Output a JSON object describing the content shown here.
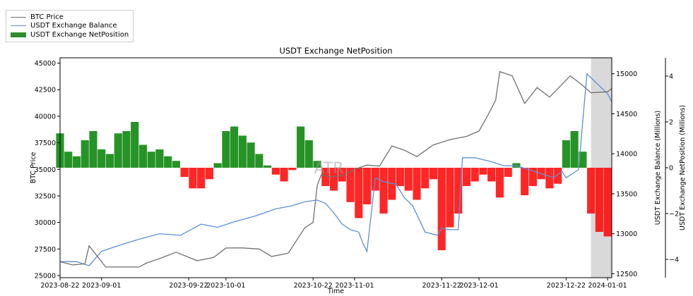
{
  "chart_data": {
    "type": "line",
    "title": "USDT Exchange NetPosition",
    "xlabel": "Time",
    "ylabel_left": "BTC Price",
    "ylabel_right1": "USDT Exchange Balance (Millions)",
    "ylabel_right2": "USDT Exchange NetPosition (Millions)",
    "watermark": "ATR",
    "x_tick_labels": [
      "2023-08-22",
      "2023-09-01",
      "2023-09-22",
      "2023-10-01",
      "2023-10-22",
      "2023-11-01",
      "2023-11-22",
      "2023-12-01",
      "2023-12-22",
      "2024-01-01"
    ],
    "x_range": [
      "2023-08-22",
      "2024-01-02"
    ],
    "shaded_region": [
      "2023-12-28",
      "2024-01-02"
    ],
    "btc_price": {
      "name": "BTC Price",
      "ylim": [
        24800,
        45500
      ],
      "ticks": [
        "25000",
        "27500",
        "30000",
        "32500",
        "35000",
        "37500",
        "40000",
        "42500",
        "45000"
      ],
      "x": [
        "2023-08-22",
        "2023-08-25",
        "2023-08-28",
        "2023-08-29",
        "2023-08-30",
        "2023-09-02",
        "2023-09-06",
        "2023-09-10",
        "2023-09-12",
        "2023-09-15",
        "2023-09-19",
        "2023-09-24",
        "2023-09-28",
        "2023-10-01",
        "2023-10-05",
        "2023-10-09",
        "2023-10-12",
        "2023-10-16",
        "2023-10-18",
        "2023-10-20",
        "2023-10-22",
        "2023-10-23",
        "2023-10-24",
        "2023-10-26",
        "2023-10-29",
        "2023-11-01",
        "2023-11-04",
        "2023-11-07",
        "2023-11-10",
        "2023-11-13",
        "2023-11-16",
        "2023-11-20",
        "2023-11-24",
        "2023-11-28",
        "2023-12-01",
        "2023-12-03",
        "2023-12-05",
        "2023-12-06",
        "2023-12-09",
        "2023-12-12",
        "2023-12-15",
        "2023-12-18",
        "2023-12-20",
        "2023-12-23",
        "2023-12-26",
        "2023-12-28",
        "2024-01-01",
        "2024-01-02"
      ],
      "values": [
        26300,
        26000,
        26100,
        27800,
        27300,
        25800,
        25800,
        25800,
        26200,
        26600,
        27200,
        26400,
        26700,
        27600,
        27600,
        27500,
        26800,
        27100,
        28300,
        29500,
        30000,
        33500,
        34500,
        34300,
        34400,
        35000,
        35400,
        35300,
        37200,
        36800,
        36200,
        37300,
        37800,
        38100,
        38600,
        40000,
        41500,
        44200,
        43800,
        41200,
        42700,
        41800,
        42600,
        43800,
        42900,
        42200,
        42300,
        42600
      ]
    },
    "usdt_balance": {
      "name": "USDT Exchange Balance",
      "ylim": [
        12450,
        15200
      ],
      "ticks": [
        "12500",
        "13000",
        "13500",
        "14000",
        "14500",
        "15000"
      ],
      "x": [
        "2023-08-22",
        "2023-08-26",
        "2023-08-29",
        "2023-09-01",
        "2023-09-05",
        "2023-09-10",
        "2023-09-15",
        "2023-09-20",
        "2023-09-25",
        "2023-09-29",
        "2023-10-03",
        "2023-10-08",
        "2023-10-13",
        "2023-10-17",
        "2023-10-20",
        "2023-10-23",
        "2023-10-25",
        "2023-10-27",
        "2023-10-29",
        "2023-10-31",
        "2023-11-02",
        "2023-11-03",
        "2023-11-04",
        "2023-11-06",
        "2023-11-08",
        "2023-11-11",
        "2023-11-13",
        "2023-11-15",
        "2023-11-18",
        "2023-11-21",
        "2023-11-22",
        "2023-11-24",
        "2023-11-26",
        "2023-11-27",
        "2023-11-30",
        "2023-12-04",
        "2023-12-07",
        "2023-12-10",
        "2023-12-13",
        "2023-12-16",
        "2023-12-19",
        "2023-12-21",
        "2023-12-22",
        "2023-12-25",
        "2023-12-27",
        "2023-12-29",
        "2024-01-01",
        "2024-01-02"
      ],
      "values": [
        12650,
        12650,
        12600,
        12780,
        12850,
        12930,
        13000,
        12980,
        13120,
        13080,
        13150,
        13220,
        13310,
        13350,
        13400,
        13420,
        13380,
        13260,
        13120,
        13050,
        13020,
        12880,
        12780,
        13700,
        13650,
        13620,
        13450,
        13350,
        13020,
        12980,
        13070,
        13050,
        13050,
        13950,
        13950,
        13900,
        13850,
        13850,
        13800,
        13750,
        13700,
        13780,
        13700,
        13800,
        15000,
        14900,
        14750,
        14650
      ]
    },
    "usdt_netposition": {
      "name": "USDT Exchange NetPosition",
      "type": "bar",
      "ylim": [
        -4.8,
        4.8
      ],
      "ticks": [
        "−4",
        "−2",
        "0",
        "2",
        "4"
      ],
      "colors": {
        "positive": "#008000",
        "negative": "#ff0000"
      },
      "x": [
        "2023-08-22",
        "2023-08-24",
        "2023-08-26",
        "2023-08-28",
        "2023-08-30",
        "2023-09-01",
        "2023-09-03",
        "2023-09-05",
        "2023-09-07",
        "2023-09-09",
        "2023-09-11",
        "2023-09-13",
        "2023-09-15",
        "2023-09-17",
        "2023-09-19",
        "2023-09-21",
        "2023-09-23",
        "2023-09-25",
        "2023-09-27",
        "2023-09-29",
        "2023-10-01",
        "2023-10-03",
        "2023-10-05",
        "2023-10-07",
        "2023-10-09",
        "2023-10-11",
        "2023-10-13",
        "2023-10-15",
        "2023-10-17",
        "2023-10-19",
        "2023-10-21",
        "2023-10-23",
        "2023-10-25",
        "2023-10-27",
        "2023-10-29",
        "2023-10-31",
        "2023-11-02",
        "2023-11-04",
        "2023-11-06",
        "2023-11-08",
        "2023-11-10",
        "2023-11-12",
        "2023-11-14",
        "2023-11-16",
        "2023-11-18",
        "2023-11-20",
        "2023-11-22",
        "2023-11-24",
        "2023-11-26",
        "2023-11-28",
        "2023-11-30",
        "2023-12-02",
        "2023-12-04",
        "2023-12-06",
        "2023-12-08",
        "2023-12-10",
        "2023-12-12",
        "2023-12-14",
        "2023-12-16",
        "2023-12-18",
        "2023-12-20",
        "2023-12-22",
        "2023-12-24",
        "2023-12-26",
        "2023-12-28",
        "2023-12-30",
        "2024-01-01"
      ],
      "values": [
        1.5,
        0.7,
        0.5,
        1.2,
        1.6,
        0.8,
        0.6,
        1.5,
        1.6,
        2.0,
        1.0,
        0.7,
        0.8,
        0.5,
        0.3,
        -0.4,
        -0.9,
        -0.9,
        -0.5,
        0.2,
        1.6,
        1.8,
        1.4,
        1.1,
        0.6,
        0.1,
        -0.3,
        -0.6,
        -0.1,
        1.8,
        1.2,
        0.3,
        -0.8,
        -1.0,
        -0.6,
        -1.5,
        -2.2,
        -1.6,
        -1.0,
        -2.0,
        -1.4,
        -0.8,
        -1.0,
        -1.4,
        -0.9,
        -0.5,
        -3.6,
        -2.6,
        -2.0,
        -0.8,
        -0.6,
        -0.3,
        -0.6,
        -1.3,
        -0.4,
        0.2,
        -1.2,
        -0.8,
        -0.5,
        -0.9,
        -0.7,
        1.2,
        1.6,
        0.7,
        -2.0,
        -2.8,
        -3.0
      ]
    }
  }
}
